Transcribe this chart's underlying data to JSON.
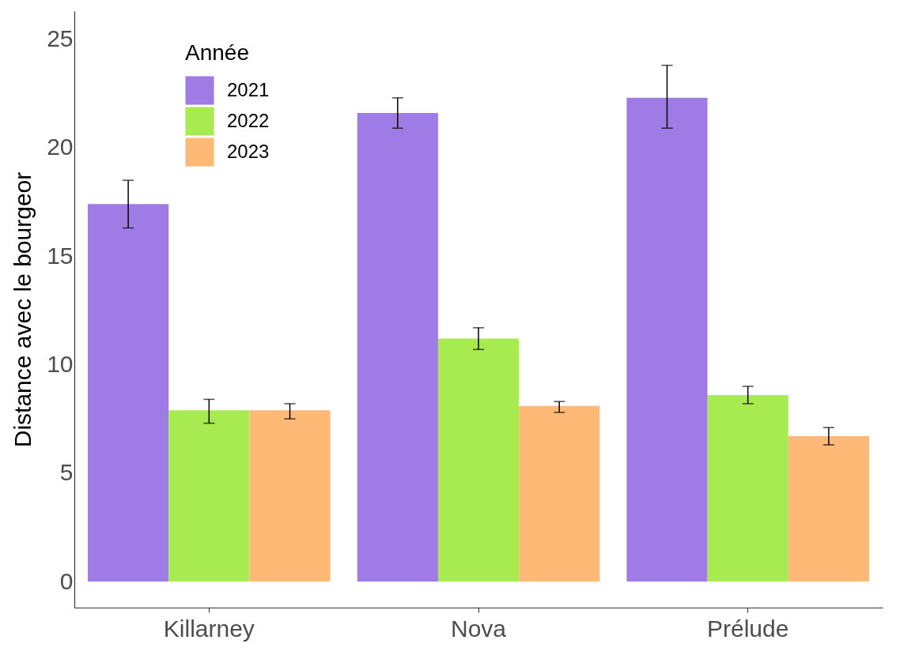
{
  "chart_data": {
    "type": "bar",
    "ylabel": "Distance avec le bourgeor",
    "legend_title": "Année",
    "categories": [
      "Killarney",
      "Nova",
      "Prélude"
    ],
    "series": [
      {
        "name": "2021",
        "color": "#9f7be6",
        "values": [
          17.4,
          21.6,
          22.3
        ],
        "errors": [
          [
            16.3,
            18.5
          ],
          [
            20.9,
            22.3
          ],
          [
            20.9,
            23.8
          ]
        ]
      },
      {
        "name": "2022",
        "color": "#a8eb50",
        "values": [
          7.9,
          11.2,
          8.6
        ],
        "errors": [
          [
            7.3,
            8.4
          ],
          [
            10.7,
            11.7
          ],
          [
            8.2,
            9.0
          ]
        ]
      },
      {
        "name": "2023",
        "color": "#ffb977",
        "values": [
          7.9,
          8.1,
          6.7
        ],
        "errors": [
          [
            7.5,
            8.2
          ],
          [
            7.8,
            8.3
          ],
          [
            6.3,
            7.1
          ]
        ]
      }
    ],
    "ylim": [
      -1.2,
      26.3
    ],
    "yticks": [
      0,
      5,
      10,
      15,
      20,
      25
    ],
    "grid": false,
    "legend": "top left"
  }
}
